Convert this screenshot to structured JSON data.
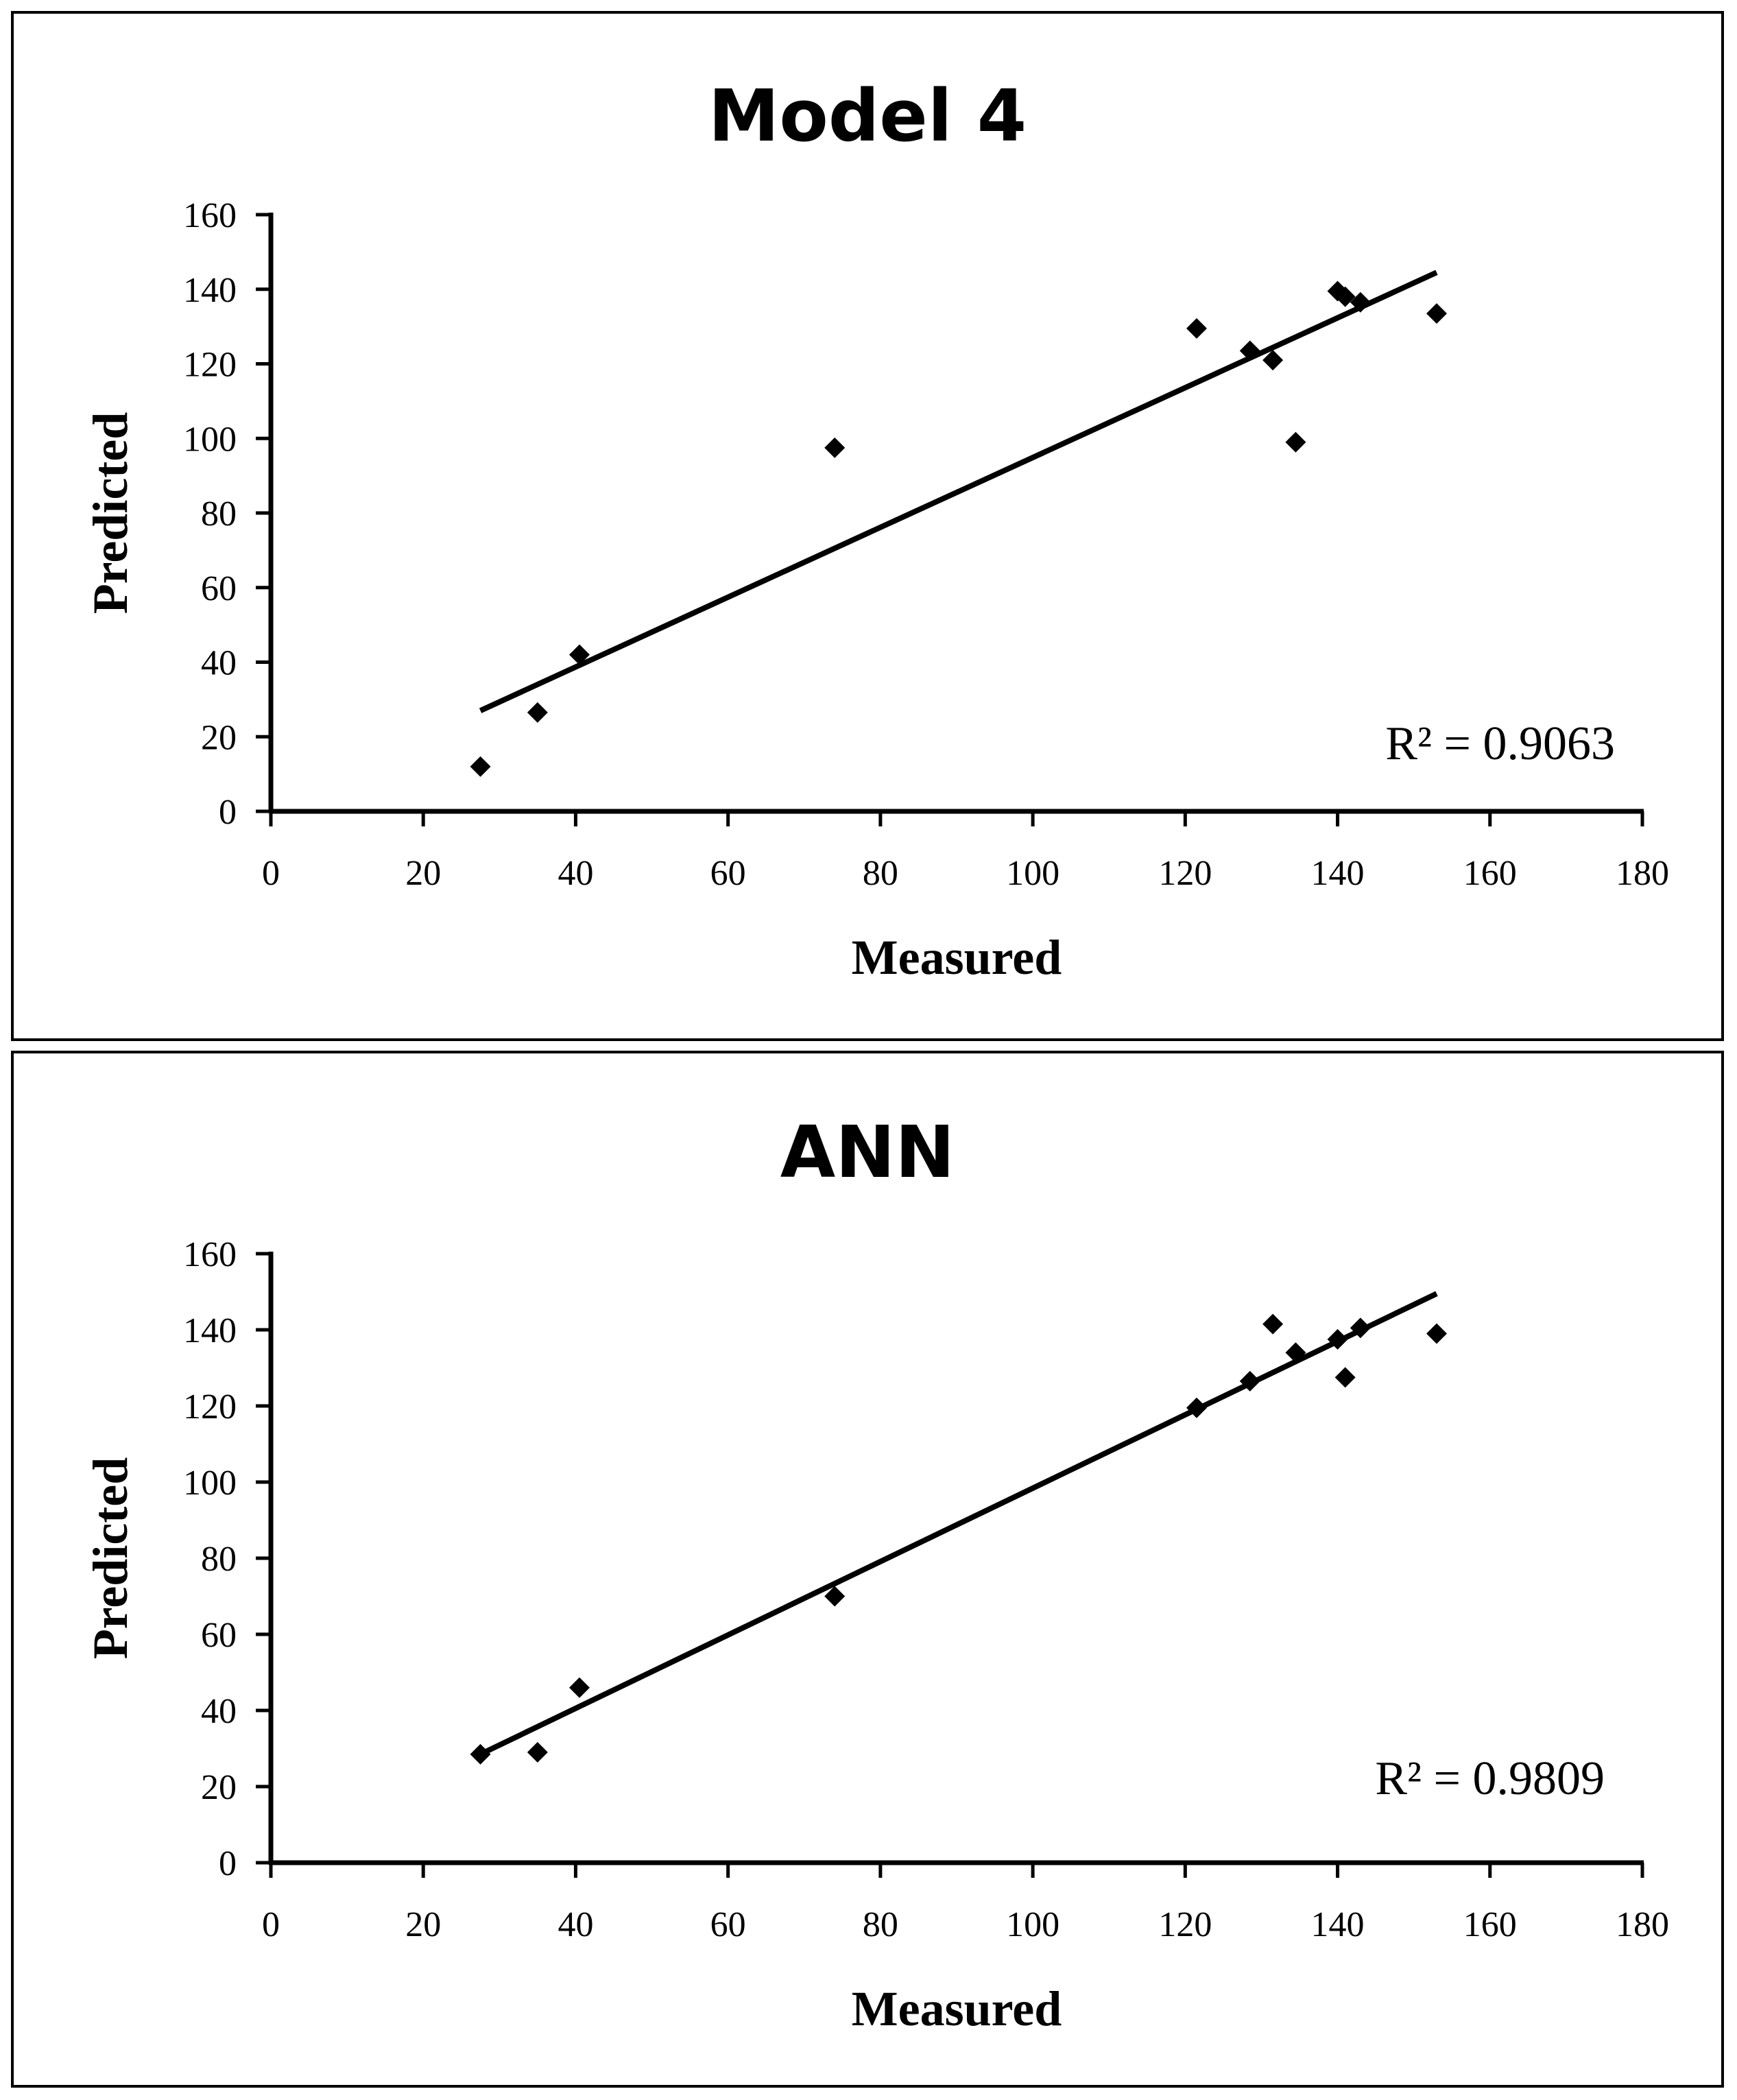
{
  "chart_data": [
    {
      "type": "scatter",
      "title": "Model 4",
      "xlabel": "Measured",
      "ylabel": "Predicted",
      "xlim": [
        0,
        180
      ],
      "ylim": [
        0,
        160
      ],
      "xticks": [
        "0",
        "20",
        "40",
        "60",
        "80",
        "100",
        "120",
        "140",
        "160",
        "180"
      ],
      "yticks": [
        "0",
        "20",
        "40",
        "60",
        "80",
        "100",
        "120",
        "140",
        "160"
      ],
      "grid": false,
      "series": [
        {
          "name": "points",
          "x": [
            27.5,
            35,
            40.5,
            74,
            121.5,
            128.5,
            131.5,
            134.5,
            140,
            141,
            143,
            153
          ],
          "y": [
            12,
            26.5,
            42,
            97.5,
            129.5,
            123.5,
            121,
            99,
            139.5,
            138,
            136.5,
            133.5
          ]
        }
      ],
      "trendline": {
        "x": [
          27.5,
          153
        ],
        "y": [
          27,
          144.5
        ]
      },
      "annotation": "R² = 0.9063"
    },
    {
      "type": "scatter",
      "title": "ANN",
      "xlabel": "Measured",
      "ylabel": "Predicted",
      "xlim": [
        0,
        180
      ],
      "ylim": [
        0,
        160
      ],
      "xticks": [
        "0",
        "20",
        "40",
        "60",
        "80",
        "100",
        "120",
        "140",
        "160",
        "180"
      ],
      "yticks": [
        "0",
        "20",
        "40",
        "60",
        "80",
        "100",
        "120",
        "140",
        "160"
      ],
      "grid": false,
      "series": [
        {
          "name": "points",
          "x": [
            27.5,
            35,
            40.5,
            74,
            121.5,
            128.5,
            131.5,
            134.5,
            140,
            141,
            143,
            153
          ],
          "y": [
            28.5,
            29,
            46,
            70,
            119.5,
            126.5,
            141.5,
            134,
            137.5,
            127.5,
            140.5,
            139
          ]
        }
      ],
      "trendline": {
        "x": [
          27.5,
          153
        ],
        "y": [
          28.5,
          149.5
        ]
      },
      "annotation": "R² = 0.9809"
    }
  ]
}
